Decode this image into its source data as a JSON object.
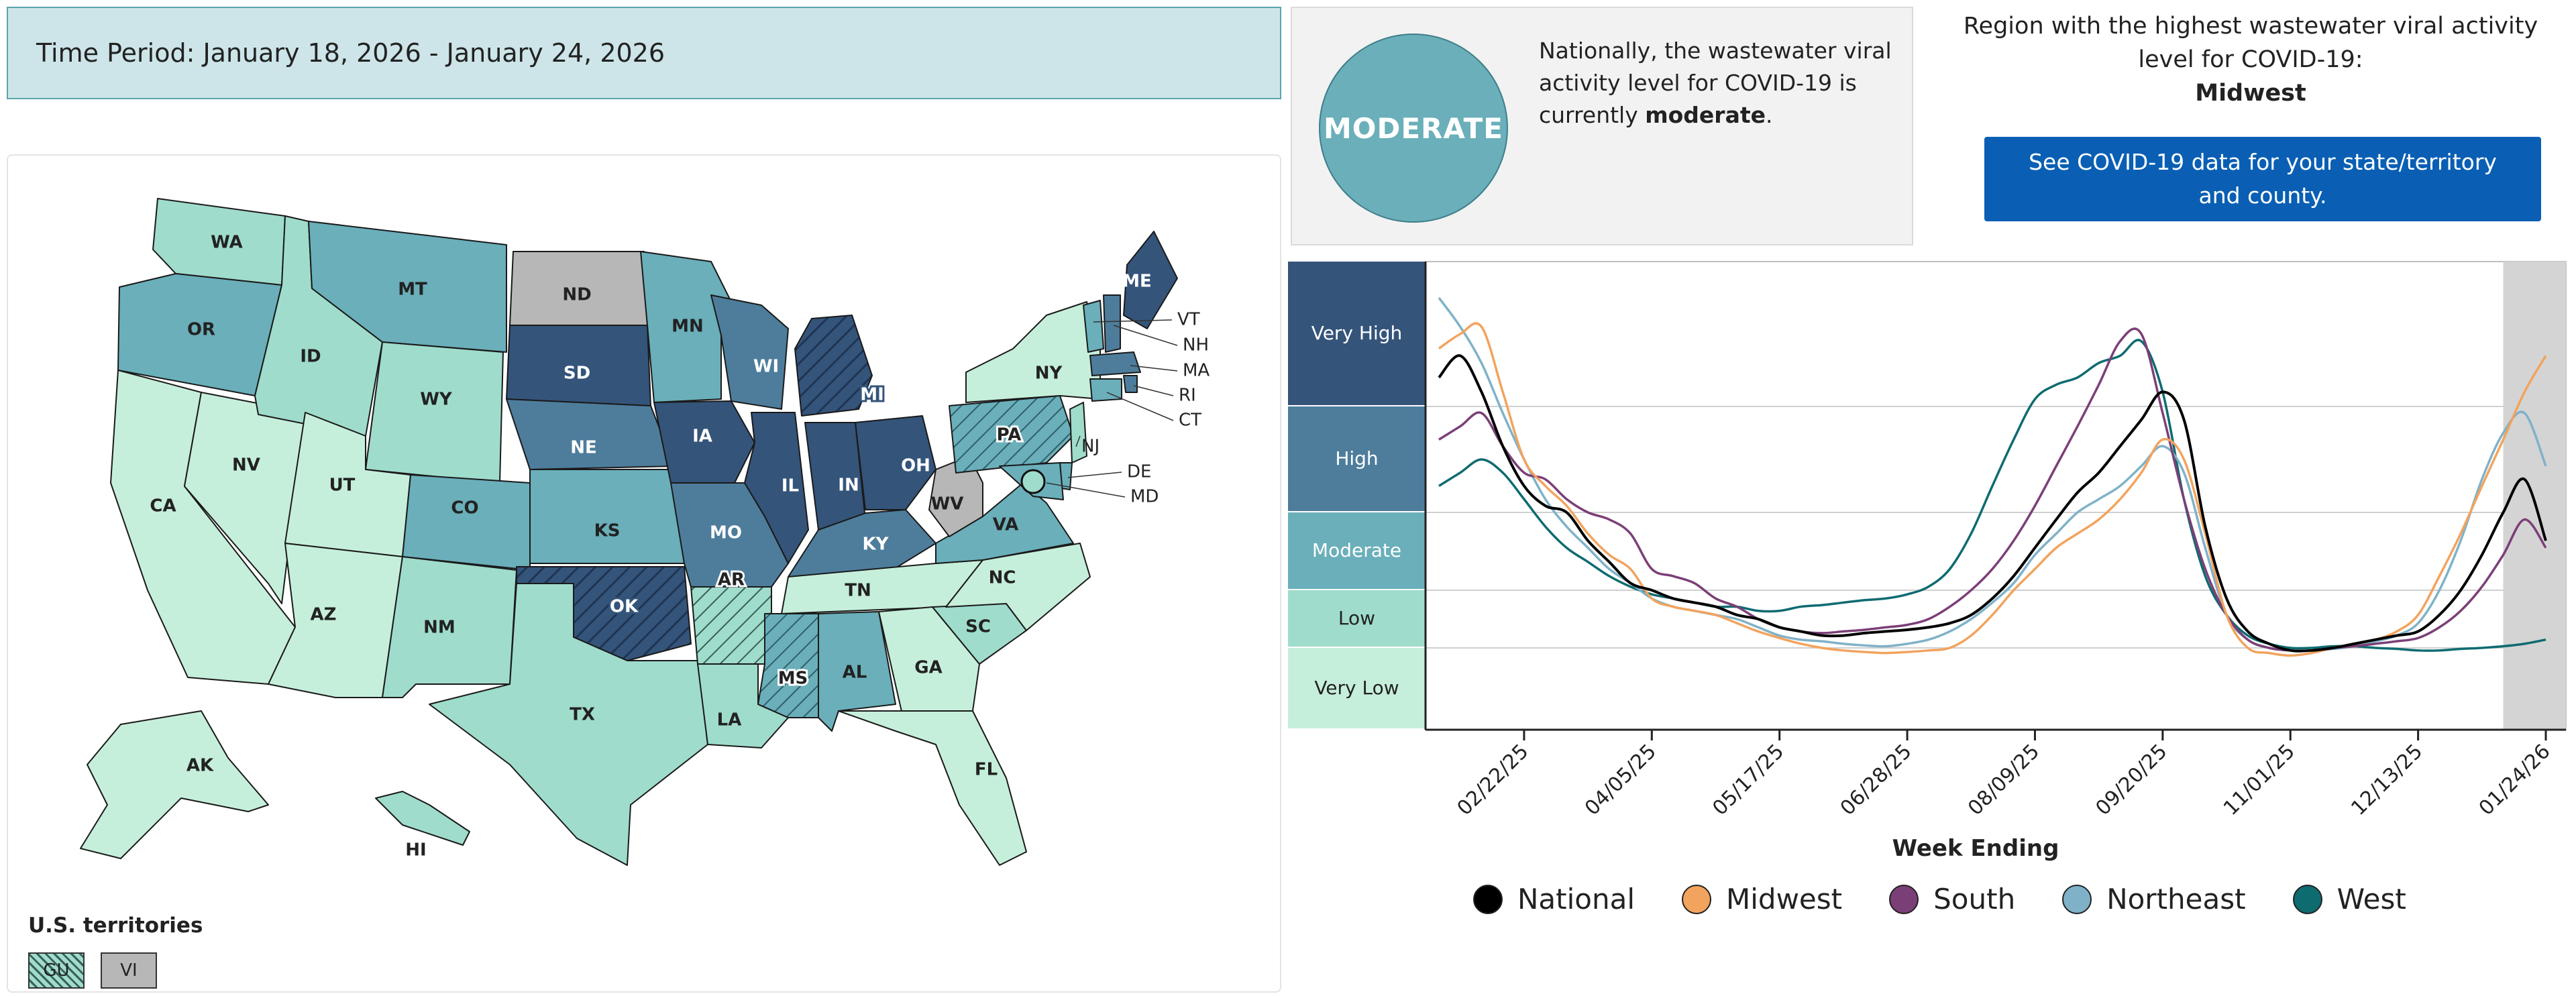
{
  "time_period": "Time Period: January 18, 2026 - January 24, 2026",
  "status": {
    "level_badge": "MODERATE",
    "text_before": "Nationally, the wastewater viral activity level for COVID-19 is currently ",
    "text_bold": "moderate",
    "text_after": "."
  },
  "region": {
    "label": "Region with the highest wastewater viral activity level for COVID-19:",
    "name": "Midwest"
  },
  "cta": {
    "label": "See COVID-19 data for your state/territory and county."
  },
  "colors": {
    "very_high": "#34547a",
    "high": "#4e7d9c",
    "moderate": "#6aafba",
    "low": "#9fdccc",
    "very_low": "#c6efdb",
    "no_data": "#b7b7b7",
    "national": "#000000",
    "midwest": "#f2a35e",
    "south": "#7b3f77",
    "northeast": "#7fb2c8",
    "west": "#0e6b70"
  },
  "map": {
    "states": [
      {
        "abbr": "WA",
        "level": "low"
      },
      {
        "abbr": "OR",
        "level": "moderate"
      },
      {
        "abbr": "CA",
        "level": "very_low"
      },
      {
        "abbr": "NV",
        "level": "very_low"
      },
      {
        "abbr": "ID",
        "level": "low"
      },
      {
        "abbr": "MT",
        "level": "moderate"
      },
      {
        "abbr": "WY",
        "level": "low"
      },
      {
        "abbr": "UT",
        "level": "very_low"
      },
      {
        "abbr": "AZ",
        "level": "very_low"
      },
      {
        "abbr": "CO",
        "level": "moderate"
      },
      {
        "abbr": "NM",
        "level": "low"
      },
      {
        "abbr": "ND",
        "level": "no_data"
      },
      {
        "abbr": "SD",
        "level": "very_high"
      },
      {
        "abbr": "NE",
        "level": "high"
      },
      {
        "abbr": "KS",
        "level": "moderate"
      },
      {
        "abbr": "OK",
        "level": "very_high",
        "hatched": true
      },
      {
        "abbr": "TX",
        "level": "low"
      },
      {
        "abbr": "MN",
        "level": "moderate"
      },
      {
        "abbr": "IA",
        "level": "very_high"
      },
      {
        "abbr": "MO",
        "level": "high"
      },
      {
        "abbr": "AR",
        "level": "low",
        "hatched": true
      },
      {
        "abbr": "LA",
        "level": "low"
      },
      {
        "abbr": "WI",
        "level": "high"
      },
      {
        "abbr": "IL",
        "level": "very_high"
      },
      {
        "abbr": "MI",
        "level": "very_high",
        "hatched": true
      },
      {
        "abbr": "IN",
        "level": "very_high"
      },
      {
        "abbr": "OH",
        "level": "very_high"
      },
      {
        "abbr": "KY",
        "level": "high"
      },
      {
        "abbr": "TN",
        "level": "very_low"
      },
      {
        "abbr": "MS",
        "level": "moderate",
        "hatched": true
      },
      {
        "abbr": "AL",
        "level": "moderate"
      },
      {
        "abbr": "GA",
        "level": "very_low"
      },
      {
        "abbr": "FL",
        "level": "very_low"
      },
      {
        "abbr": "SC",
        "level": "low"
      },
      {
        "abbr": "NC",
        "level": "very_low"
      },
      {
        "abbr": "VA",
        "level": "moderate"
      },
      {
        "abbr": "WV",
        "level": "no_data"
      },
      {
        "abbr": "PA",
        "level": "moderate",
        "hatched": true
      },
      {
        "abbr": "NY",
        "level": "very_low"
      },
      {
        "abbr": "ME",
        "level": "very_high"
      },
      {
        "abbr": "VT",
        "level": "moderate"
      },
      {
        "abbr": "NH",
        "level": "high"
      },
      {
        "abbr": "MA",
        "level": "high"
      },
      {
        "abbr": "RI",
        "level": "high"
      },
      {
        "abbr": "CT",
        "level": "moderate"
      },
      {
        "abbr": "NJ",
        "level": "low"
      },
      {
        "abbr": "DE",
        "level": "moderate"
      },
      {
        "abbr": "MD",
        "level": "moderate"
      },
      {
        "abbr": "AK",
        "level": "very_low"
      },
      {
        "abbr": "HI",
        "level": "low"
      }
    ],
    "territories_title": "U.S. territories",
    "territories": [
      {
        "abbr": "GU",
        "level": "low",
        "hatched": true
      },
      {
        "abbr": "VI",
        "level": "no_data"
      }
    ]
  },
  "chart_data": {
    "type": "line",
    "xlabel": "Week Ending",
    "x_ticks": [
      "02/22/25",
      "04/05/25",
      "05/17/25",
      "06/28/25",
      "08/09/25",
      "09/20/25",
      "11/01/25",
      "12/13/25",
      "01/24/26"
    ],
    "bands": [
      {
        "label": "Very High",
        "level": "very_high"
      },
      {
        "label": "High",
        "level": "high"
      },
      {
        "label": "Moderate",
        "level": "moderate"
      },
      {
        "label": "Low",
        "level": "low"
      },
      {
        "label": "Very Low",
        "level": "very_low"
      }
    ],
    "x": [
      "01/25/25",
      "02/01/25",
      "02/08/25",
      "02/15/25",
      "02/22/25",
      "03/01/25",
      "03/08/25",
      "03/15/25",
      "03/22/25",
      "03/29/25",
      "04/05/25",
      "04/12/25",
      "04/19/25",
      "04/26/25",
      "05/03/25",
      "05/10/25",
      "05/17/25",
      "05/24/25",
      "05/31/25",
      "06/07/25",
      "06/14/25",
      "06/21/25",
      "06/28/25",
      "07/05/25",
      "07/12/25",
      "07/19/25",
      "07/26/25",
      "08/02/25",
      "08/09/25",
      "08/16/25",
      "08/23/25",
      "08/30/25",
      "09/06/25",
      "09/13/25",
      "09/20/25",
      "09/27/25",
      "10/04/25",
      "10/11/25",
      "10/18/25",
      "10/25/25",
      "11/01/25",
      "11/08/25",
      "11/15/25",
      "11/22/25",
      "11/29/25",
      "12/06/25",
      "12/13/25",
      "12/20/25",
      "12/27/25",
      "01/03/26",
      "01/10/26",
      "01/17/26",
      "01/24/26"
    ],
    "series": [
      {
        "name": "National",
        "color_key": "national",
        "values": [
          5.4,
          5.7,
          5.2,
          4.4,
          3.8,
          3.5,
          3.4,
          3.0,
          2.7,
          2.4,
          2.3,
          2.2,
          2.15,
          2.1,
          2.0,
          1.95,
          1.85,
          1.8,
          1.75,
          1.75,
          1.78,
          1.8,
          1.82,
          1.85,
          1.9,
          2.0,
          2.2,
          2.5,
          2.9,
          3.3,
          3.7,
          4.0,
          4.4,
          4.8,
          5.2,
          4.8,
          3.2,
          2.2,
          1.8,
          1.65,
          1.55,
          1.55,
          1.6,
          1.65,
          1.7,
          1.75,
          1.8,
          2.0,
          2.3,
          2.8,
          3.4,
          3.9,
          3.0
        ]
      },
      {
        "name": "Midwest",
        "color_key": "midwest",
        "values": [
          5.8,
          6.0,
          6.1,
          5.2,
          4.2,
          3.8,
          3.5,
          3.1,
          2.8,
          2.6,
          2.2,
          2.1,
          2.05,
          2.0,
          1.9,
          1.8,
          1.72,
          1.65,
          1.6,
          1.55,
          1.52,
          1.5,
          1.52,
          1.55,
          1.6,
          1.75,
          2.0,
          2.3,
          2.6,
          2.9,
          3.1,
          3.3,
          3.6,
          4.0,
          4.5,
          4.2,
          3.1,
          2.0,
          1.6,
          1.5,
          1.45,
          1.5,
          1.6,
          1.65,
          1.7,
          1.8,
          2.0,
          2.5,
          3.1,
          3.8,
          4.5,
          5.2,
          5.7
        ]
      },
      {
        "name": "South",
        "color_key": "south",
        "values": [
          4.5,
          4.7,
          4.9,
          4.4,
          4.0,
          3.9,
          3.6,
          3.4,
          3.3,
          3.1,
          2.6,
          2.5,
          2.4,
          2.2,
          2.1,
          1.95,
          1.85,
          1.8,
          1.78,
          1.8,
          1.82,
          1.85,
          1.88,
          1.95,
          2.1,
          2.3,
          2.6,
          3.0,
          3.5,
          4.1,
          4.7,
          5.3,
          5.9,
          6.0,
          4.9,
          3.6,
          2.6,
          2.0,
          1.7,
          1.6,
          1.55,
          1.55,
          1.6,
          1.62,
          1.65,
          1.68,
          1.72,
          1.85,
          2.05,
          2.35,
          2.8,
          3.3,
          2.9
        ]
      },
      {
        "name": "Northeast",
        "color_key": "northeast",
        "values": [
          6.5,
          6.1,
          5.6,
          4.9,
          4.2,
          3.6,
          3.2,
          2.9,
          2.6,
          2.4,
          2.2,
          2.1,
          2.05,
          2.0,
          1.95,
          1.85,
          1.75,
          1.7,
          1.68,
          1.65,
          1.63,
          1.62,
          1.65,
          1.7,
          1.8,
          1.95,
          2.15,
          2.4,
          2.8,
          3.1,
          3.4,
          3.6,
          3.8,
          4.1,
          4.4,
          4.0,
          2.9,
          2.0,
          1.7,
          1.6,
          1.55,
          1.55,
          1.58,
          1.62,
          1.68,
          1.75,
          1.9,
          2.3,
          3.0,
          3.9,
          4.6,
          4.9,
          4.1
        ]
      },
      {
        "name": "West",
        "color_key": "west",
        "values": [
          3.8,
          4.0,
          4.2,
          4.0,
          3.6,
          3.2,
          2.9,
          2.7,
          2.5,
          2.35,
          2.25,
          2.2,
          2.15,
          2.1,
          2.1,
          2.05,
          2.05,
          2.1,
          2.12,
          2.15,
          2.18,
          2.2,
          2.25,
          2.35,
          2.6,
          3.1,
          3.8,
          4.5,
          5.1,
          5.3,
          5.4,
          5.6,
          5.7,
          5.9,
          5.2,
          3.6,
          2.5,
          2.0,
          1.75,
          1.65,
          1.6,
          1.6,
          1.62,
          1.62,
          1.6,
          1.58,
          1.55,
          1.55,
          1.58,
          1.6,
          1.62,
          1.65,
          1.7
        ]
      }
    ]
  }
}
